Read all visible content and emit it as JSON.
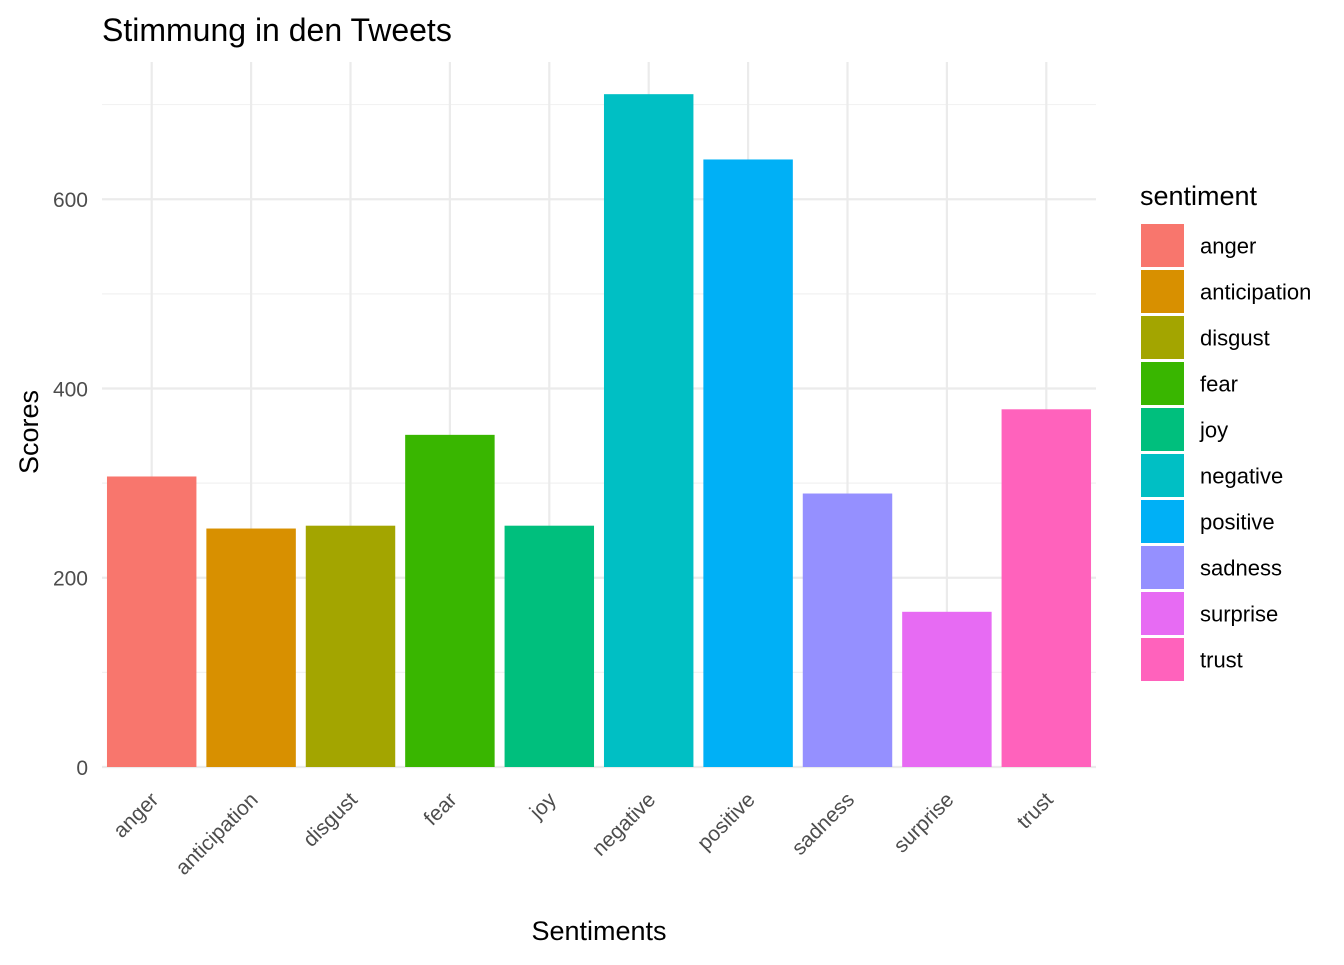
{
  "chart_data": {
    "type": "bar",
    "title": "Stimmung in den Tweets",
    "xlabel": "Sentiments",
    "ylabel": "Scores",
    "categories": [
      "anger",
      "anticipation",
      "disgust",
      "fear",
      "joy",
      "negative",
      "positive",
      "sadness",
      "surprise",
      "trust"
    ],
    "values": [
      307,
      252,
      255,
      351,
      255,
      711,
      642,
      289,
      164,
      378
    ],
    "colors": [
      "#F8766D",
      "#D89000",
      "#A3A500",
      "#39B600",
      "#00BF7D",
      "#00BFC4",
      "#00B0F6",
      "#9590FF",
      "#E76BF3",
      "#FF62BC"
    ],
    "ylim": [
      0,
      745
    ],
    "y_ticks": [
      0,
      200,
      400,
      600
    ],
    "grid": true,
    "legend": {
      "title": "sentiment",
      "position": "right",
      "entries": [
        "anger",
        "anticipation",
        "disgust",
        "fear",
        "joy",
        "negative",
        "positive",
        "sadness",
        "surprise",
        "trust"
      ]
    }
  }
}
